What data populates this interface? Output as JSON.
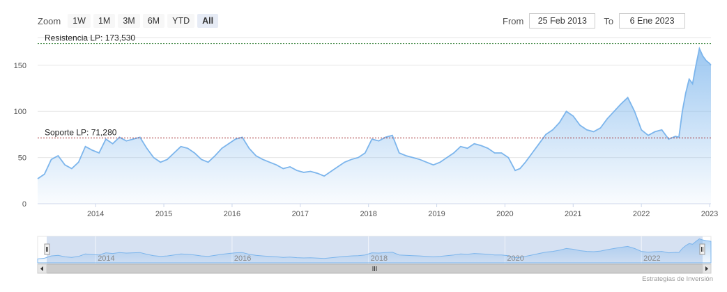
{
  "zoom": {
    "label": "Zoom",
    "buttons": [
      {
        "label": "1W",
        "active": false
      },
      {
        "label": "1M",
        "active": false
      },
      {
        "label": "3M",
        "active": false
      },
      {
        "label": "6M",
        "active": false
      },
      {
        "label": "YTD",
        "active": false
      },
      {
        "label": "All",
        "active": true
      }
    ]
  },
  "range": {
    "from_label": "From",
    "from_value": "25 Feb 2013",
    "to_label": "To",
    "to_value": "6 Ene 2023"
  },
  "credit": "Estrategias de Inversión",
  "colors": {
    "series": "#7cb5ec",
    "resistance": "#2e7d32",
    "support": "#a0282d",
    "navigator_mask": "#c8d7ee"
  },
  "chart_data": {
    "type": "area",
    "x_ticks": [
      "2014",
      "2015",
      "2016",
      "2017",
      "2018",
      "2019",
      "2020",
      "2021",
      "2022",
      "2023"
    ],
    "y_ticks": [
      0,
      50,
      100,
      150
    ],
    "ylim": [
      0,
      180
    ],
    "xlim": [
      2013.15,
      2023.02
    ],
    "grid": true,
    "plot_lines": [
      {
        "label": "Resistencia LP: 173,530",
        "value": 173.53
      },
      {
        "label": "Soporte LP: 71,280",
        "value": 71.28
      }
    ],
    "navigator_ticks": [
      "2014",
      "2016",
      "2018",
      "2020",
      "2022"
    ],
    "series": [
      {
        "x": [
          2013.15,
          2013.25,
          2013.35,
          2013.45,
          2013.55,
          2013.65,
          2013.75,
          2013.85,
          2013.95,
          2014.05,
          2014.15,
          2014.25,
          2014.35,
          2014.45,
          2014.55,
          2014.65,
          2014.75,
          2014.85,
          2014.95,
          2015.05,
          2015.15,
          2015.25,
          2015.35,
          2015.45,
          2015.55,
          2015.65,
          2015.75,
          2015.85,
          2015.95,
          2016.05,
          2016.15,
          2016.25,
          2016.35,
          2016.45,
          2016.55,
          2016.65,
          2016.75,
          2016.85,
          2016.95,
          2017.05,
          2017.15,
          2017.25,
          2017.35,
          2017.45,
          2017.55,
          2017.65,
          2017.75,
          2017.85,
          2017.95,
          2018.05,
          2018.15,
          2018.25,
          2018.35,
          2018.45,
          2018.55,
          2018.65,
          2018.75,
          2018.85,
          2018.95,
          2019.05,
          2019.15,
          2019.25,
          2019.35,
          2019.45,
          2019.55,
          2019.65,
          2019.75,
          2019.85,
          2019.95,
          2020.05,
          2020.15,
          2020.22,
          2020.3,
          2020.4,
          2020.5,
          2020.6,
          2020.7,
          2020.8,
          2020.9,
          2021.0,
          2021.1,
          2021.2,
          2021.3,
          2021.4,
          2021.5,
          2021.6,
          2021.7,
          2021.8,
          2021.9,
          2022.0,
          2022.1,
          2022.2,
          2022.3,
          2022.4,
          2022.5,
          2022.55,
          2022.6,
          2022.65,
          2022.7,
          2022.75,
          2022.8,
          2022.85,
          2022.9,
          2022.95,
          2023.0,
          2023.02
        ],
        "y": [
          27,
          32,
          48,
          52,
          42,
          38,
          45,
          62,
          58,
          55,
          70,
          65,
          72,
          68,
          70,
          72,
          60,
          50,
          45,
          48,
          55,
          62,
          60,
          55,
          48,
          45,
          52,
          60,
          65,
          70,
          72,
          60,
          52,
          48,
          45,
          42,
          38,
          40,
          36,
          34,
          35,
          33,
          30,
          35,
          40,
          45,
          48,
          50,
          55,
          70,
          68,
          72,
          74,
          55,
          52,
          50,
          48,
          45,
          42,
          45,
          50,
          55,
          62,
          60,
          65,
          63,
          60,
          55,
          55,
          50,
          36,
          38,
          45,
          55,
          65,
          75,
          80,
          88,
          100,
          95,
          85,
          80,
          78,
          82,
          92,
          100,
          108,
          115,
          100,
          80,
          74,
          78,
          80,
          70,
          73,
          72,
          100,
          120,
          135,
          130,
          150,
          168,
          160,
          155,
          152,
          150
        ]
      }
    ]
  }
}
